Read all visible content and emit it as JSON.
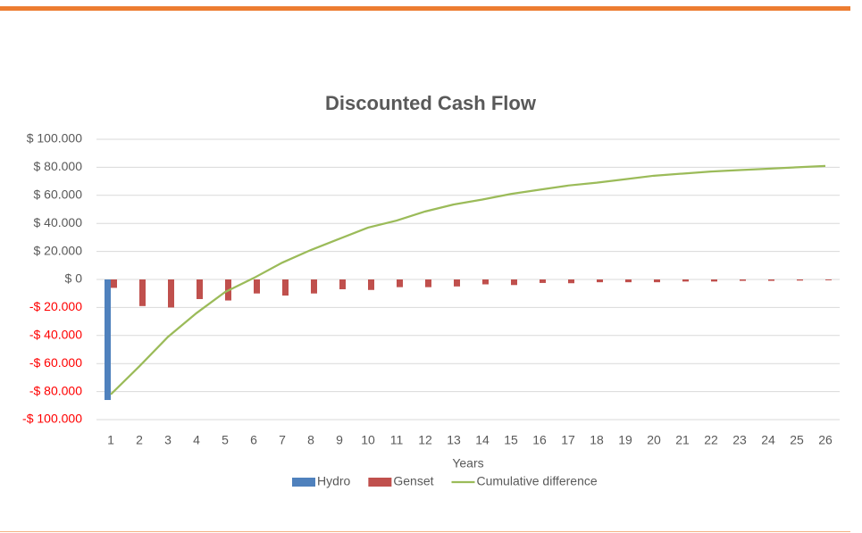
{
  "chart_data": {
    "type": "combo",
    "title": "Discounted Cash Flow",
    "x_label": "Years",
    "categories": [
      "1",
      "2",
      "3",
      "4",
      "5",
      "6",
      "7",
      "8",
      "9",
      "10",
      "11",
      "12",
      "13",
      "14",
      "15",
      "16",
      "17",
      "18",
      "19",
      "20",
      "21",
      "22",
      "23",
      "24",
      "25",
      "26"
    ],
    "series": [
      {
        "name": "Hydro",
        "type": "bar",
        "color": "#4f81bd",
        "values": [
          -86000,
          null,
          null,
          null,
          null,
          null,
          null,
          null,
          null,
          null,
          null,
          null,
          null,
          null,
          null,
          null,
          null,
          null,
          null,
          null,
          null,
          null,
          null,
          null,
          null,
          null
        ]
      },
      {
        "name": "Genset",
        "type": "bar",
        "color": "#c0504d",
        "values": [
          -6000,
          -19000,
          -20000,
          -14000,
          -15000,
          -10000,
          -11500,
          -10000,
          -7000,
          -7500,
          -5500,
          -5500,
          -5000,
          -3500,
          -4000,
          -2500,
          -2700,
          -2000,
          -2000,
          -2000,
          -1500,
          -1500,
          -1000,
          -1000,
          -800,
          -600
        ]
      },
      {
        "name": "Cumulative difference",
        "type": "line",
        "color": "#9bbb59",
        "values": [
          -82000,
          -62000,
          -41000,
          -24000,
          -9000,
          1000,
          12000,
          21000,
          29000,
          37000,
          42000,
          48500,
          53500,
          57000,
          61000,
          64000,
          67000,
          69000,
          71500,
          74000,
          75500,
          77000,
          78000,
          79000,
          80000,
          81000
        ]
      }
    ],
    "ylim": [
      -100000,
      100000
    ],
    "yticks": [
      {
        "value": -100000,
        "label": "-$ 100.000"
      },
      {
        "value": -80000,
        "label": "-$ 80.000"
      },
      {
        "value": -60000,
        "label": "-$ 60.000"
      },
      {
        "value": -40000,
        "label": "-$ 40.000"
      },
      {
        "value": -20000,
        "label": "-$ 20.000"
      },
      {
        "value": 0,
        "label": "$ 0"
      },
      {
        "value": 20000,
        "label": "$ 20.000"
      },
      {
        "value": 40000,
        "label": "$ 40.000"
      },
      {
        "value": 60000,
        "label": "$ 60.000"
      },
      {
        "value": 80000,
        "label": "$ 80.000"
      },
      {
        "value": 100000,
        "label": "$ 100.000"
      }
    ],
    "negative_tick_color": "#ff0000",
    "grid": true,
    "legend": "bottom"
  }
}
